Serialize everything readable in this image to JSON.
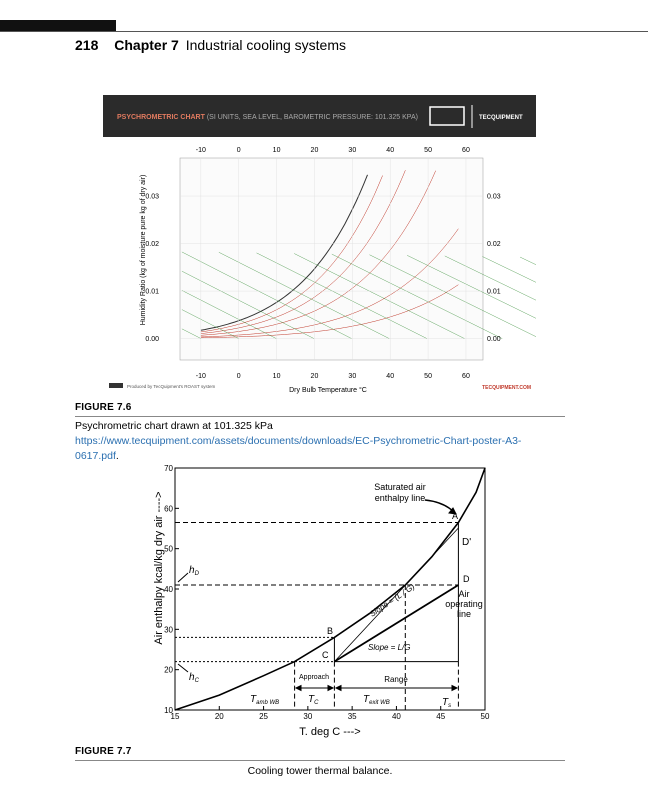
{
  "header": {
    "page_number": "218",
    "chapter": "Chapter 7",
    "title": "Industrial cooling systems"
  },
  "figure_7_6": {
    "chart": {
      "banner_title": "PSYCHROMETRIC CHART",
      "banner_subtitle": "(SI UNITS, SEA LEVEL, BAROMETRIC PRESSURE: 101.325 KPA)",
      "brand": "TECQUIPMENT",
      "xlabel": "Dry Bulb Temperature °C",
      "ylabel": "Humidity Ratio (kg of moisture pure kg of dry air)",
      "xlim": [
        -15.5,
        64.5
      ],
      "xticks": [
        -10,
        0,
        10,
        20,
        30,
        40,
        50,
        60
      ],
      "ylim": [
        -0.0045,
        0.038
      ],
      "yticks": [
        {
          "value": 0,
          "label": "0.00"
        },
        0.01,
        0.02,
        0.03
      ],
      "footer_note": "Produced by TecQuipment's ROAST system",
      "footer_brand": "TECQUIPMENT.COM"
    },
    "label": "FIGURE 7.6",
    "caption": "Psychrometric chart drawn at 101.325 kPa",
    "link": "https://www.tecquipment.com/assets/documents/downloads/EC-Psychrometric-Chart-poster-A3-0617.pdf",
    "caption_end": "."
  },
  "figure_7_7": {
    "chart": {
      "xlabel": "T. deg C --->",
      "ylabel": "Air enthalpy kcal/kg dry air ---->",
      "xlim": [
        15,
        50
      ],
      "xticks": [
        15,
        20,
        25,
        30,
        35,
        40,
        45,
        50
      ],
      "ylim": [
        10,
        70
      ],
      "yticks": [
        10,
        20,
        30,
        40,
        50,
        60,
        70
      ],
      "annotations": {
        "saturated": "Saturated air enthalpy line",
        "A": "A",
        "D_prime": "D'",
        "D": "D",
        "B": "B",
        "C": "C",
        "hD": {
          "main": "h",
          "sub": "D"
        },
        "hC": {
          "main": "h",
          "sub": "C"
        },
        "operating": "Air operating line",
        "slope1": "Slope = (L / G)",
        "slope2": "Slope = L/G",
        "approach": "Approach",
        "range": "Range",
        "t_amb": {
          "main": "T",
          "sub": "amb WB"
        },
        "t_c": {
          "main": "T",
          "sub": "C"
        },
        "t_exit": {
          "main": "T",
          "sub": "exit WB"
        },
        "t_s": {
          "main": "T",
          "sub": "s"
        }
      }
    },
    "label": "FIGURE 7.7",
    "caption": "Cooling tower thermal balance."
  }
}
